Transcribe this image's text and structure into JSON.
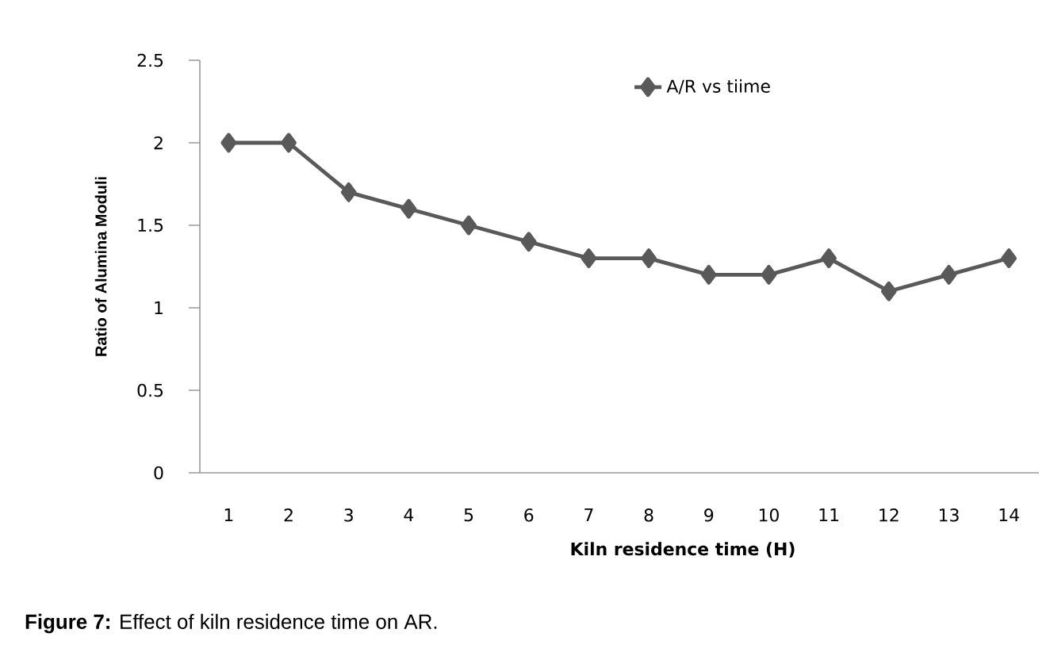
{
  "chart_data": {
    "type": "line",
    "xlabel": "Kiln residence time (H)",
    "ylabel": "Ratio of Alumina Moduli",
    "categories": [
      "1",
      "2",
      "3",
      "4",
      "5",
      "6",
      "7",
      "8",
      "9",
      "10",
      "11",
      "12",
      "13",
      "14"
    ],
    "series": [
      {
        "name": "A/R vs tiime",
        "color": "#595959",
        "values": [
          2,
          2,
          1.7,
          1.6,
          1.5,
          1.4,
          1.3,
          1.3,
          1.2,
          1.2,
          1.3,
          1.1,
          1.2,
          1.3
        ]
      }
    ],
    "ylim": [
      0,
      2.5
    ],
    "yticks": [
      0,
      0.5,
      1,
      1.5,
      2,
      2.5
    ],
    "marker": "diamond",
    "line_style": "solid",
    "legend": "top right",
    "annotations": [
      "**Figure 7:** Effect of kiln residence time on AR."
    ]
  }
}
